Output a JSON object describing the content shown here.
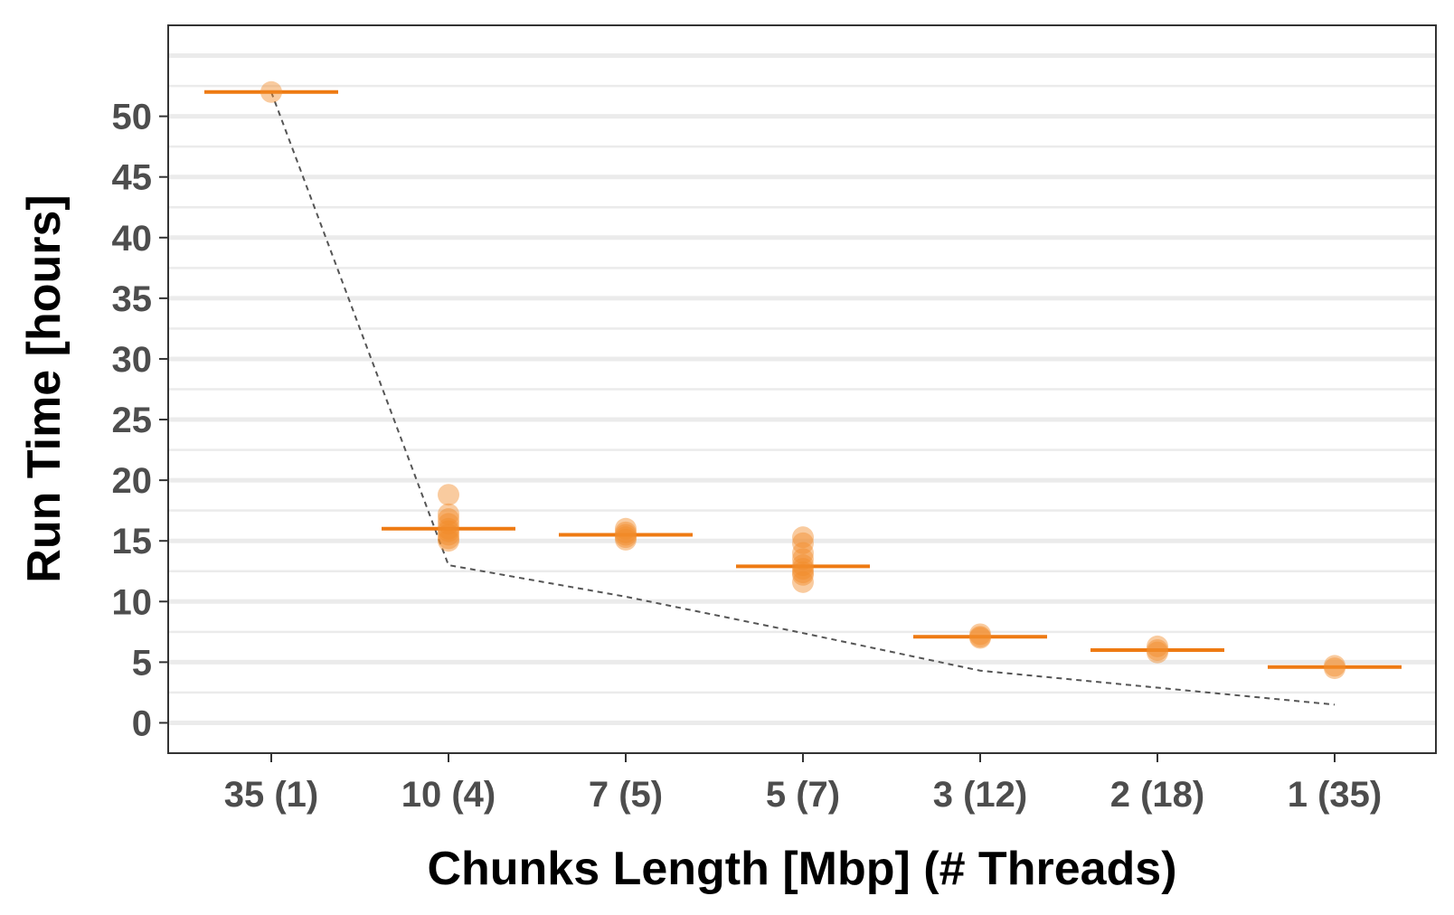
{
  "chart_data": {
    "type": "scatter",
    "title": "",
    "xlabel": "Chunks Length [Mbp] (# Threads)",
    "ylabel": "Run Time [hours]",
    "categories": [
      "35 (1)",
      "10 (4)",
      "7 (5)",
      "5 (7)",
      "3 (12)",
      "2 (18)",
      "1 (35)"
    ],
    "ylim": [
      -2.5,
      57.5
    ],
    "yticks": [
      0,
      5,
      10,
      15,
      20,
      25,
      30,
      35,
      40,
      45,
      50
    ],
    "grid": "horizontal",
    "legend": "none",
    "points": [
      [
        52.0
      ],
      [
        18.8,
        17.2,
        16.8,
        16.4,
        16.0,
        15.8,
        15.5,
        15.2,
        15.0
      ],
      [
        16.0,
        15.7,
        15.5,
        15.3,
        15.1
      ],
      [
        15.3,
        14.8,
        14.0,
        13.5,
        13.0,
        12.7,
        12.4,
        12.2,
        11.6
      ],
      [
        7.3,
        7.1,
        7.0
      ],
      [
        6.3,
        6.0,
        5.8
      ],
      [
        4.7,
        4.5
      ]
    ],
    "medians": [
      52.0,
      16.0,
      15.5,
      12.9,
      7.1,
      6.0,
      4.6
    ],
    "ideal_line": [
      52.0,
      13.0,
      10.4,
      7.4,
      4.3,
      2.9,
      1.5
    ],
    "colors": {
      "points": "#f28b2a",
      "median": "#ee7a12",
      "ideal_line": "#555555",
      "grid": "#ebebeb",
      "panel_border": "#333333"
    }
  }
}
